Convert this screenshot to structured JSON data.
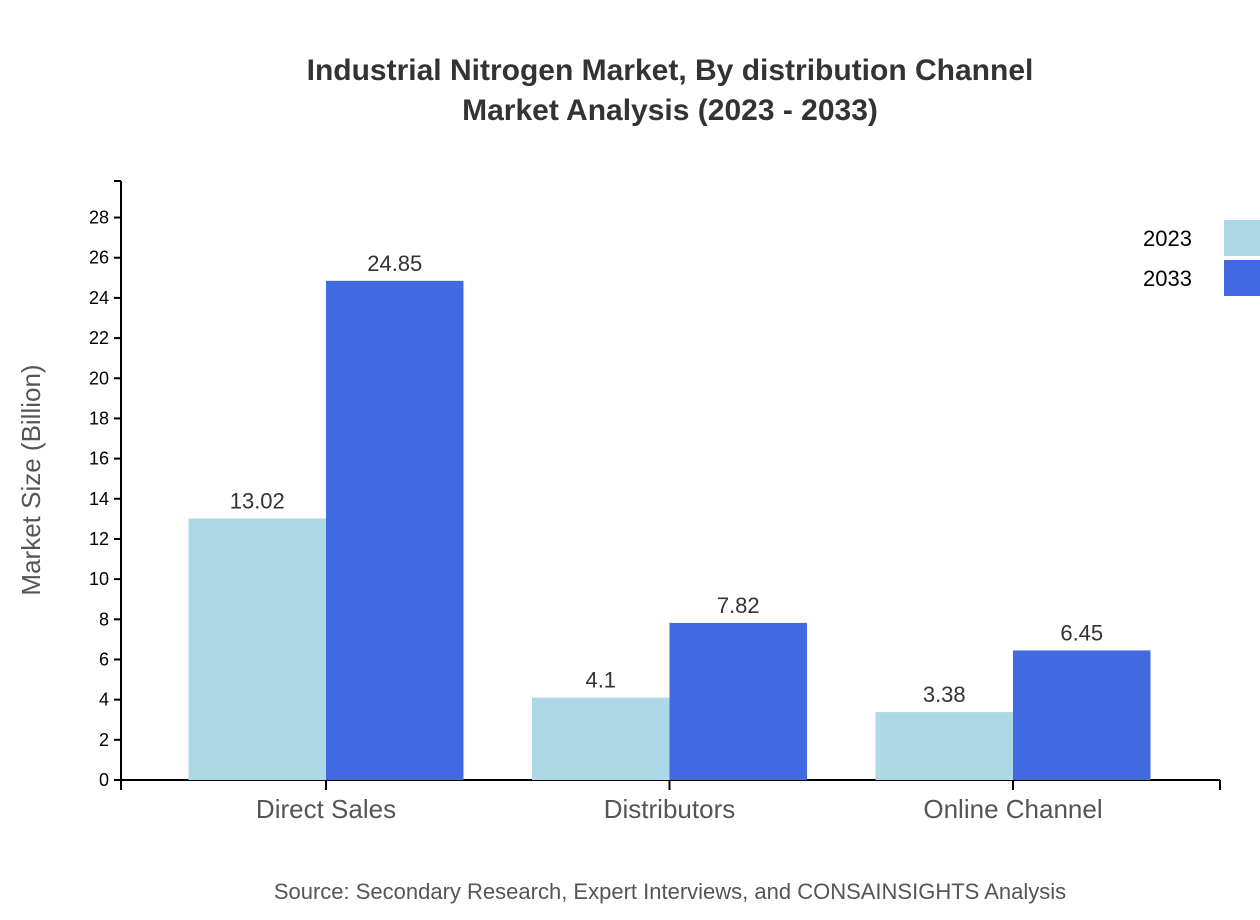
{
  "chart_data": {
    "type": "bar",
    "title": "Industrial Nitrogen Market, By distribution Channel",
    "subtitle": "Market Analysis (2023 - 2033)",
    "xlabel": "",
    "ylabel": "Market Size (Billion)",
    "categories": [
      "Direct Sales",
      "Distributors",
      "Online Channel"
    ],
    "series": [
      {
        "name": "2023",
        "values": [
          13.02,
          4.1,
          3.38
        ],
        "color": "#ADD8E6"
      },
      {
        "name": "2033",
        "values": [
          24.85,
          7.82,
          6.45
        ],
        "color": "#4169E1"
      }
    ],
    "ylim": [
      0,
      29.82
    ],
    "yticks": [
      0,
      2,
      4,
      6,
      8,
      10,
      12,
      14,
      16,
      18,
      20,
      22,
      24,
      26,
      28
    ],
    "grid": false,
    "legend": "top-right",
    "source": "Source: Secondary Research, Expert Interviews, and CONSAINSIGHTS Analysis"
  }
}
